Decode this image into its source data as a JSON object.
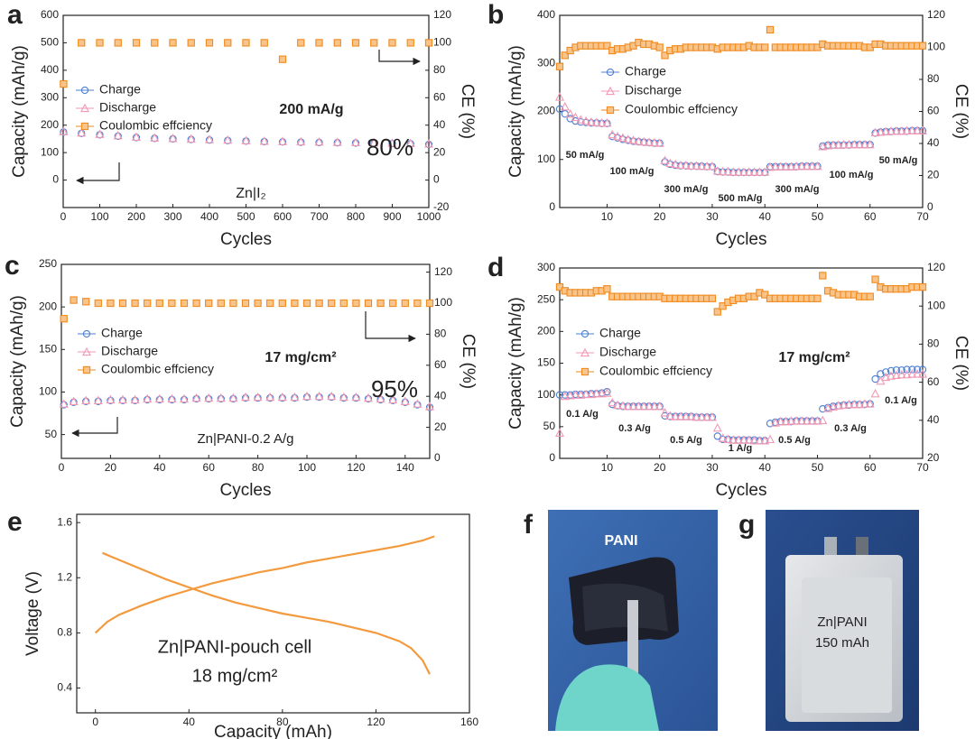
{
  "chart_data": [
    {
      "type": "scatter",
      "panel_label": "a",
      "xlabel": "Cycles",
      "ylabel": "Capacity (mAh/g)",
      "y2label": "CE (%)",
      "xlim": [
        0,
        1000
      ],
      "xticks": [
        0,
        100,
        200,
        300,
        400,
        500,
        600,
        700,
        800,
        900,
        1000
      ],
      "ylim": [
        -100,
        600
      ],
      "yticks": [
        0,
        100,
        200,
        300,
        400,
        500,
        600
      ],
      "y2lim": [
        -20,
        120
      ],
      "y2ticks": [
        -20,
        0,
        20,
        40,
        60,
        80,
        100,
        120
      ],
      "x": [
        1,
        50,
        100,
        150,
        200,
        250,
        300,
        350,
        400,
        450,
        500,
        550,
        600,
        650,
        700,
        750,
        800,
        850,
        900,
        950,
        1000
      ],
      "series": [
        {
          "name": "Charge",
          "color": "#4a7fd0",
          "marker": "circle",
          "values": [
            175,
            170,
            165,
            160,
            155,
            152,
            150,
            148,
            146,
            144,
            142,
            140,
            139,
            138,
            137,
            136,
            135,
            134,
            133,
            132,
            130
          ]
        },
        {
          "name": "Discharge",
          "color": "#f29ab4",
          "marker": "triangle",
          "values": [
            177,
            172,
            167,
            162,
            157,
            154,
            152,
            150,
            148,
            146,
            144,
            142,
            141,
            140,
            139,
            138,
            137,
            136,
            135,
            134,
            132
          ]
        },
        {
          "name": "Coulombic effciency",
          "color": "#f08a1e",
          "marker": "square",
          "axis": "y2",
          "values": [
            70,
            100,
            100,
            100,
            100,
            100,
            100,
            100,
            100,
            100,
            100,
            100,
            88,
            100,
            100,
            100,
            100,
            100,
            100,
            100,
            100
          ]
        }
      ],
      "annotations": [
        {
          "text": "200 mA/g"
        },
        {
          "text": "80%"
        },
        {
          "text": "Zn|I₂"
        }
      ]
    },
    {
      "type": "scatter",
      "panel_label": "b",
      "xlabel": "Cycles",
      "ylabel": "Capacity (mAh/g)",
      "y2label": "CE (%)",
      "xlim": [
        1,
        70
      ],
      "xticks": [
        10,
        20,
        30,
        40,
        50,
        60,
        70
      ],
      "ylim": [
        0,
        400
      ],
      "yticks": [
        0,
        100,
        200,
        300,
        400
      ],
      "y2lim": [
        0,
        120
      ],
      "y2ticks": [
        0,
        20,
        40,
        60,
        80,
        100,
        120
      ],
      "x": [
        1,
        2,
        3,
        4,
        5,
        6,
        7,
        8,
        9,
        10,
        11,
        12,
        13,
        14,
        15,
        16,
        17,
        18,
        19,
        20,
        21,
        22,
        23,
        24,
        25,
        26,
        27,
        28,
        29,
        30,
        31,
        32,
        33,
        34,
        35,
        36,
        37,
        38,
        39,
        40,
        41,
        42,
        43,
        44,
        45,
        46,
        47,
        48,
        49,
        50,
        51,
        52,
        53,
        54,
        55,
        56,
        57,
        58,
        59,
        60,
        61,
        62,
        63,
        64,
        65,
        66,
        67,
        68,
        69,
        70
      ],
      "series": [
        {
          "name": "Charge",
          "color": "#4a7fd0",
          "marker": "circle",
          "values": [
            205,
            195,
            185,
            180,
            178,
            177,
            176,
            176,
            175,
            175,
            148,
            145,
            142,
            140,
            138,
            137,
            136,
            135,
            134,
            134,
            95,
            90,
            88,
            87,
            87,
            86,
            86,
            86,
            85,
            85,
            75,
            74,
            74,
            73,
            73,
            73,
            73,
            73,
            73,
            73,
            85,
            85,
            85,
            85,
            85,
            85,
            86,
            86,
            86,
            86,
            128,
            130,
            130,
            130,
            130,
            130,
            131,
            131,
            131,
            131,
            155,
            157,
            158,
            158,
            159,
            159,
            159,
            160,
            160,
            160
          ]
        },
        {
          "name": "Discharge",
          "color": "#f29ab4",
          "marker": "triangle",
          "values": [
            230,
            210,
            195,
            188,
            183,
            180,
            178,
            177,
            176,
            176,
            152,
            148,
            145,
            142,
            140,
            138,
            137,
            136,
            135,
            134,
            98,
            92,
            90,
            88,
            88,
            87,
            87,
            86,
            86,
            86,
            76,
            75,
            75,
            74,
            74,
            74,
            74,
            74,
            74,
            74,
            84,
            85,
            85,
            85,
            85,
            86,
            86,
            86,
            86,
            86,
            127,
            129,
            130,
            130,
            131,
            131,
            131,
            131,
            131,
            131,
            156,
            157,
            158,
            159,
            159,
            159,
            160,
            160,
            160,
            160
          ]
        },
        {
          "name": "Coulombic effciency",
          "color": "#f08a1e",
          "marker": "square",
          "axis": "y2",
          "values": [
            88,
            95,
            98,
            100,
            101,
            101,
            101,
            101,
            101,
            101,
            98,
            99,
            99,
            100,
            101,
            103,
            102,
            102,
            101,
            100,
            95,
            98,
            99,
            99,
            100,
            100,
            100,
            100,
            100,
            100,
            99,
            100,
            100,
            100,
            100,
            100,
            101,
            100,
            100,
            100,
            111,
            100,
            100,
            100,
            100,
            100,
            100,
            100,
            100,
            100,
            102,
            101,
            101,
            101,
            101,
            101,
            101,
            101,
            100,
            100,
            102,
            102,
            101,
            101,
            101,
            101,
            101,
            101,
            101,
            101
          ]
        }
      ],
      "annotations": [
        {
          "text": "50 mA/g"
        },
        {
          "text": "100 mA/g"
        },
        {
          "text": "300 mA/g"
        },
        {
          "text": "500 mA/g"
        },
        {
          "text": "300 mA/g"
        },
        {
          "text": "100 mA/g"
        },
        {
          "text": "50 mA/g"
        }
      ]
    },
    {
      "type": "scatter",
      "panel_label": "c",
      "xlabel": "Cycles",
      "ylabel": "Capacity (mAh/g)",
      "y2label": "CE (%)",
      "xlim": [
        0,
        150
      ],
      "xticks": [
        0,
        20,
        40,
        60,
        80,
        100,
        120,
        140
      ],
      "ylim": [
        22,
        250
      ],
      "yticks": [
        50,
        100,
        150,
        200,
        250
      ],
      "y2lim": [
        0,
        125
      ],
      "y2ticks": [
        0,
        20,
        40,
        60,
        80,
        100,
        120
      ],
      "x": [
        1,
        5,
        10,
        15,
        20,
        25,
        30,
        35,
        40,
        45,
        50,
        55,
        60,
        65,
        70,
        75,
        80,
        85,
        90,
        95,
        100,
        105,
        110,
        115,
        120,
        125,
        130,
        135,
        140,
        145,
        150
      ],
      "series": [
        {
          "name": "Charge",
          "color": "#4a7fd0",
          "marker": "circle",
          "values": [
            85,
            88,
            89,
            89,
            90,
            90,
            90,
            91,
            91,
            91,
            91,
            92,
            92,
            92,
            92,
            93,
            93,
            93,
            93,
            93,
            94,
            94,
            94,
            93,
            93,
            92,
            91,
            90,
            88,
            85,
            82
          ]
        },
        {
          "name": "Discharge",
          "color": "#f29ab4",
          "marker": "triangle",
          "values": [
            86,
            89,
            90,
            90,
            91,
            91,
            91,
            92,
            92,
            92,
            92,
            93,
            93,
            93,
            93,
            94,
            94,
            94,
            94,
            94,
            95,
            95,
            95,
            94,
            94,
            93,
            92,
            91,
            89,
            86,
            83
          ]
        },
        {
          "name": "Coulombic effciency",
          "color": "#f08a1e",
          "marker": "square",
          "axis": "y2",
          "values": [
            90,
            102,
            101,
            100,
            100,
            100,
            100,
            100,
            100,
            100,
            100,
            100,
            100,
            100,
            100,
            100,
            100,
            100,
            100,
            100,
            100,
            100,
            100,
            100,
            100,
            100,
            100,
            100,
            100,
            100,
            100
          ]
        }
      ],
      "annotations": [
        {
          "text": "17 mg/cm²"
        },
        {
          "text": "95%"
        },
        {
          "text": "Zn|PANI-0.2 A/g"
        }
      ]
    },
    {
      "type": "scatter",
      "panel_label": "d",
      "xlabel": "Cycles",
      "ylabel": "Capacity (mAh/g)",
      "y2label": "CE (%)",
      "xlim": [
        1,
        70
      ],
      "xticks": [
        10,
        20,
        30,
        40,
        50,
        60,
        70
      ],
      "ylim": [
        0,
        300
      ],
      "yticks": [
        0,
        50,
        100,
        150,
        200,
        250,
        300
      ],
      "y2lim": [
        20,
        120
      ],
      "y2ticks": [
        20,
        40,
        60,
        80,
        100,
        120
      ],
      "x": [
        1,
        2,
        3,
        4,
        5,
        6,
        7,
        8,
        9,
        10,
        11,
        12,
        13,
        14,
        15,
        16,
        17,
        18,
        19,
        20,
        21,
        22,
        23,
        24,
        25,
        26,
        27,
        28,
        29,
        30,
        31,
        32,
        33,
        34,
        35,
        36,
        37,
        38,
        39,
        40,
        41,
        42,
        43,
        44,
        45,
        46,
        47,
        48,
        49,
        50,
        51,
        52,
        53,
        54,
        55,
        56,
        57,
        58,
        59,
        60,
        61,
        62,
        63,
        64,
        65,
        66,
        67,
        68,
        69,
        70
      ],
      "series": [
        {
          "name": "Charge",
          "color": "#4a7fd0",
          "marker": "circle",
          "values": [
            100,
            100,
            100,
            101,
            101,
            101,
            102,
            102,
            103,
            105,
            85,
            83,
            82,
            82,
            82,
            82,
            82,
            82,
            82,
            82,
            67,
            66,
            66,
            66,
            66,
            66,
            65,
            65,
            65,
            65,
            35,
            30,
            30,
            29,
            29,
            29,
            29,
            29,
            28,
            28,
            55,
            57,
            58,
            58,
            58,
            59,
            59,
            59,
            59,
            59,
            78,
            80,
            82,
            83,
            84,
            84,
            85,
            85,
            85,
            86,
            125,
            133,
            136,
            138,
            139,
            139,
            140,
            140,
            140,
            140
          ]
        },
        {
          "name": "Discharge",
          "color": "#f29ab4",
          "marker": "triangle",
          "values": [
            40,
            98,
            99,
            100,
            100,
            101,
            101,
            102,
            102,
            103,
            88,
            84,
            83,
            82,
            82,
            82,
            82,
            82,
            82,
            82,
            72,
            67,
            66,
            66,
            66,
            66,
            65,
            65,
            65,
            65,
            48,
            32,
            30,
            29,
            29,
            29,
            29,
            28,
            28,
            28,
            30,
            56,
            58,
            58,
            59,
            59,
            59,
            59,
            59,
            59,
            60,
            79,
            81,
            83,
            84,
            85,
            85,
            85,
            86,
            86,
            102,
            122,
            128,
            130,
            131,
            132,
            132,
            133,
            133,
            133
          ]
        },
        {
          "name": "Coulombic effciency",
          "color": "#f08a1e",
          "marker": "square",
          "axis": "y2",
          "values": [
            110,
            108,
            107,
            107,
            107,
            107,
            107,
            108,
            108,
            109,
            105,
            105,
            105,
            105,
            105,
            105,
            105,
            105,
            105,
            105,
            104,
            104,
            104,
            104,
            104,
            104,
            104,
            104,
            104,
            104,
            97,
            100,
            102,
            103,
            104,
            104,
            105,
            105,
            107,
            106,
            104,
            104,
            104,
            104,
            104,
            104,
            104,
            104,
            104,
            104,
            116,
            108,
            107,
            106,
            106,
            106,
            106,
            105,
            105,
            105,
            114,
            110,
            109,
            109,
            109,
            109,
            109,
            110,
            110,
            110
          ]
        }
      ],
      "annotations": [
        {
          "text": "17 mg/cm²"
        },
        {
          "text": "0.1 A/g"
        },
        {
          "text": "0.3 A/g"
        },
        {
          "text": "0.5 A/g"
        },
        {
          "text": "1 A/g"
        },
        {
          "text": "0.5 A/g"
        },
        {
          "text": "0.3 A/g"
        },
        {
          "text": "0.1 A/g"
        }
      ]
    },
    {
      "type": "line",
      "panel_label": "e",
      "xlabel": "Capacity (mAh)",
      "ylabel": "Voltage (V)",
      "xlim": [
        -8,
        160
      ],
      "xticks": [
        0,
        40,
        80,
        120,
        160
      ],
      "ylim": [
        0.22,
        1.66
      ],
      "yticks": [
        0.4,
        0.8,
        1.2,
        1.6
      ],
      "series": [
        {
          "color": "#f39a3e",
          "x": [
            0,
            5,
            10,
            20,
            30,
            40,
            50,
            60,
            70,
            80,
            90,
            100,
            110,
            120,
            130,
            140,
            145
          ],
          "values": [
            0.8,
            0.88,
            0.93,
            1.0,
            1.06,
            1.11,
            1.16,
            1.2,
            1.24,
            1.27,
            1.31,
            1.34,
            1.37,
            1.4,
            1.43,
            1.47,
            1.5
          ]
        },
        {
          "color": "#f39a3e",
          "x": [
            3,
            10,
            20,
            30,
            40,
            50,
            60,
            70,
            80,
            90,
            100,
            110,
            120,
            130,
            135,
            140,
            143
          ],
          "values": [
            1.38,
            1.33,
            1.26,
            1.19,
            1.13,
            1.07,
            1.02,
            0.98,
            0.94,
            0.91,
            0.88,
            0.84,
            0.8,
            0.74,
            0.69,
            0.6,
            0.5
          ]
        }
      ],
      "annotations": [
        {
          "text": "Zn|PANI-pouch cell"
        },
        {
          "text": "18 mg/cm²"
        }
      ]
    }
  ],
  "photos": [
    {
      "panel_label": "f",
      "label": "PANI"
    },
    {
      "panel_label": "g",
      "label": "Zn|PANI",
      "sublabel": "150 mAh"
    }
  ]
}
